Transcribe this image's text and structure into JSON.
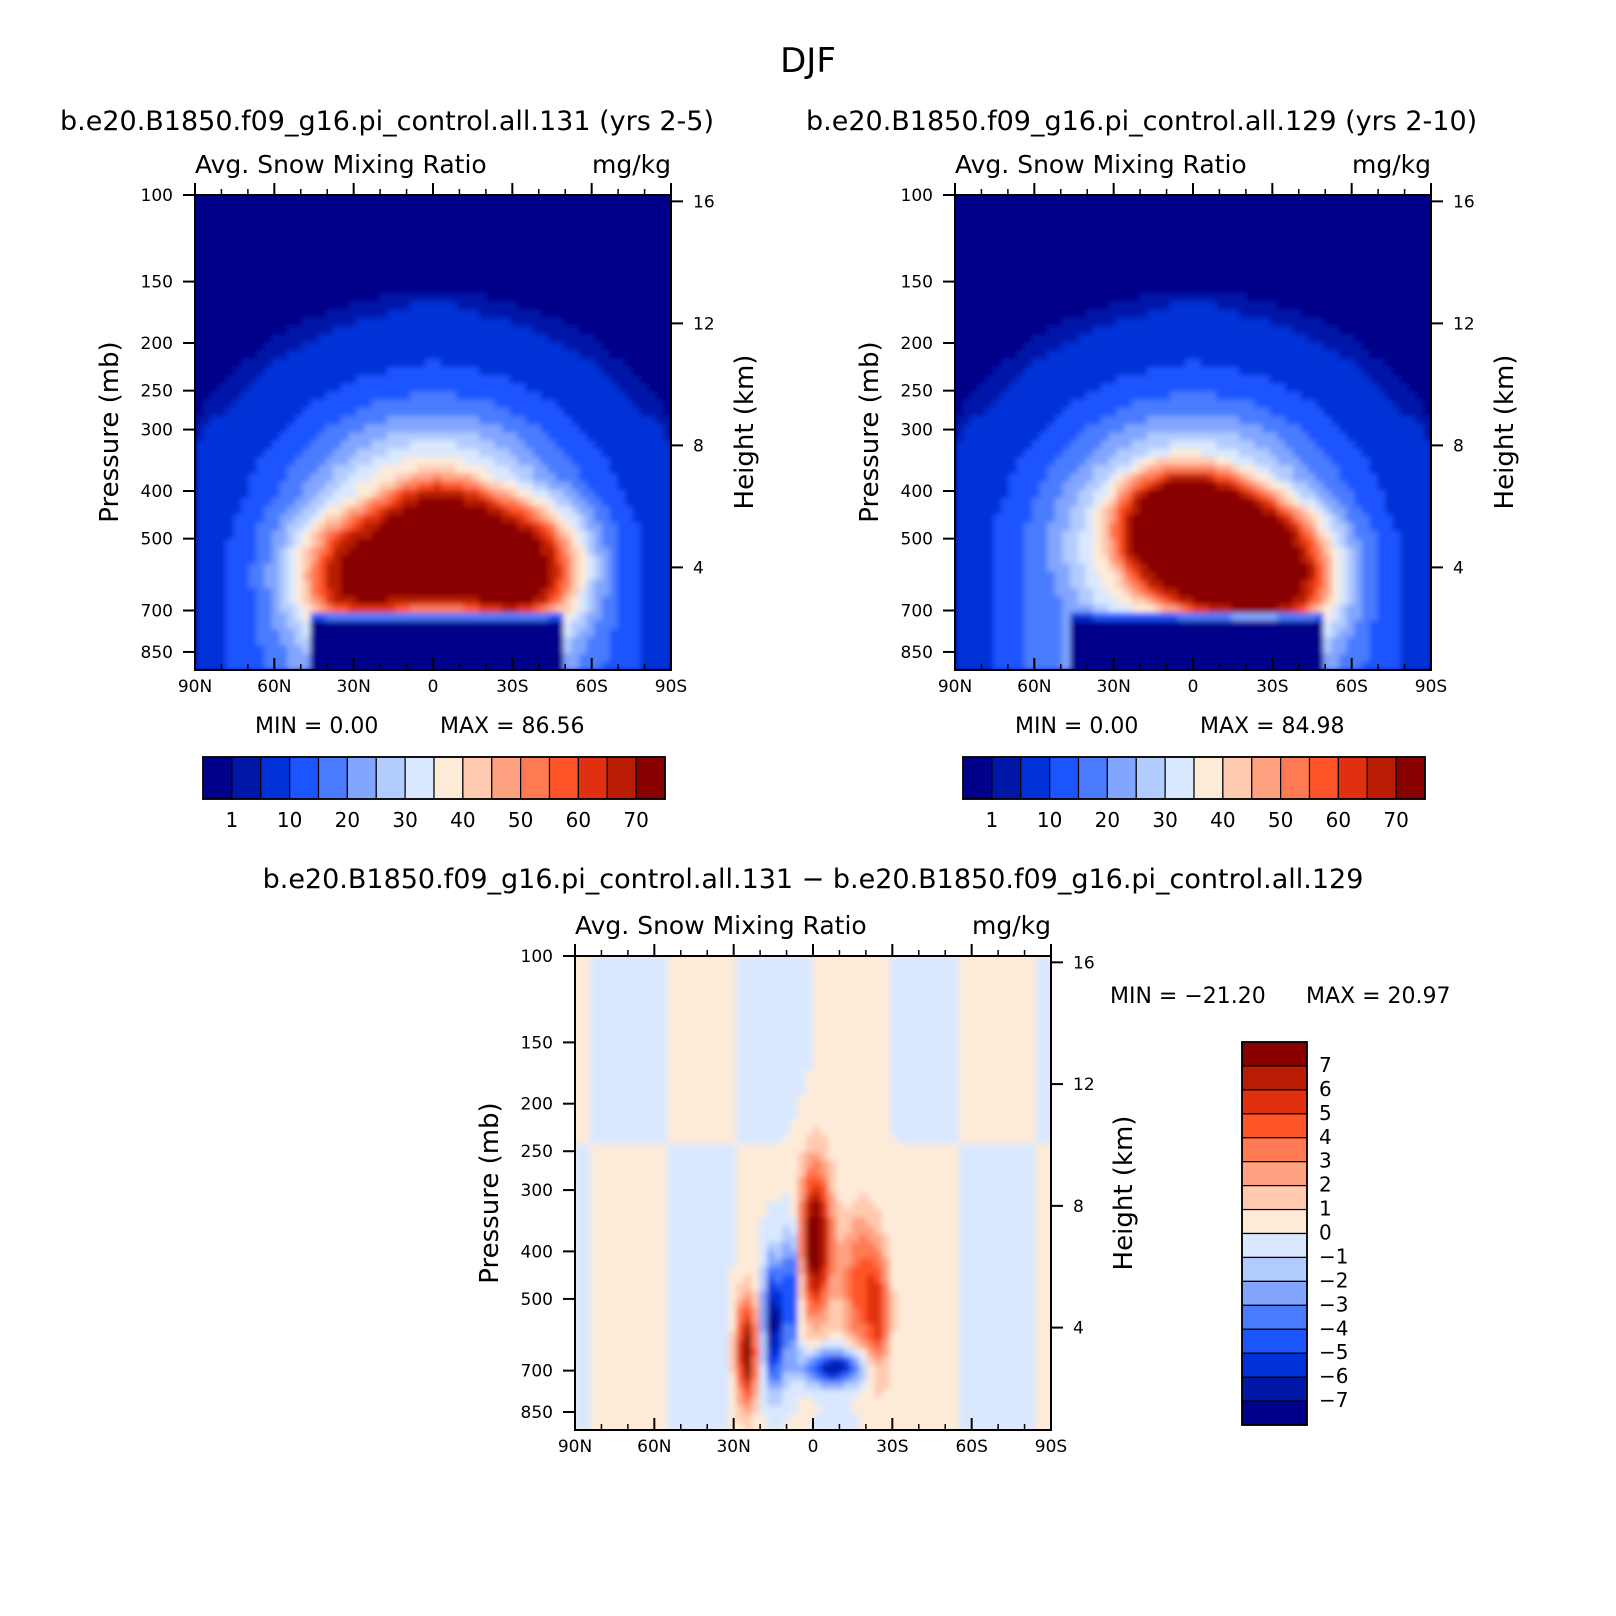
{
  "figure_title": "DJF",
  "colors": {
    "seq": [
      "#00008a",
      "#0018a8",
      "#0030d8",
      "#1a55ff",
      "#4a7bff",
      "#82a6ff",
      "#b3ccff",
      "#d9e8ff",
      "#fdebd8",
      "#ffcab0",
      "#ffa282",
      "#ff7a52",
      "#ff5428",
      "#e0300f",
      "#b81c05",
      "#880000"
    ],
    "div": [
      "#880000",
      "#b81c05",
      "#e0300f",
      "#ff5428",
      "#ff7a52",
      "#ffa282",
      "#ffcab0",
      "#fdebd8",
      "#d9e8ff",
      "#b3ccff",
      "#82a6ff",
      "#4a7bff",
      "#1a55ff",
      "#0030d8",
      "#0018a8",
      "#00008a"
    ]
  },
  "chart_data": [
    {
      "type": "heatmap",
      "title": "b.e20.B1850.f09_g16.pi_control.all.131 (yrs 2-5)",
      "subtitle_left": "Avg. Snow Mixing Ratio",
      "subtitle_right": "mg/kg",
      "ylabel": "Pressure (mb)",
      "ylabel_right": "Height (km)",
      "x_ticks": [
        "90N",
        "60N",
        "30N",
        "0",
        "30S",
        "60S",
        "90S"
      ],
      "y_ticks": [
        "100",
        "150",
        "200",
        "250",
        "300",
        "400",
        "500",
        "700",
        "850"
      ],
      "y_ticks_right": [
        "16",
        "12",
        "8",
        "4"
      ],
      "min_label": "MIN = 0.00",
      "max_label": "MAX = 86.56",
      "min": 0.0,
      "max": 86.56,
      "colorbar_labels": [
        "1",
        "10",
        "20",
        "30",
        "40",
        "50",
        "60",
        "70"
      ],
      "peaks": [
        {
          "lat": 28,
          "p": 600,
          "value": 62
        },
        {
          "lat": -2,
          "p": 500,
          "value": 86.56
        },
        {
          "lat": -32,
          "p": 580,
          "value": 75
        }
      ]
    },
    {
      "type": "heatmap",
      "title": "b.e20.B1850.f09_g16.pi_control.all.129 (yrs 2-10)",
      "subtitle_left": "Avg. Snow Mixing Ratio",
      "subtitle_right": "mg/kg",
      "ylabel": "Pressure (mb)",
      "ylabel_right": "Height (km)",
      "x_ticks": [
        "90N",
        "60N",
        "30N",
        "0",
        "30S",
        "60S",
        "90S"
      ],
      "y_ticks": [
        "100",
        "150",
        "200",
        "250",
        "300",
        "400",
        "500",
        "700",
        "850"
      ],
      "y_ticks_right": [
        "16",
        "12",
        "8",
        "4"
      ],
      "min_label": "MIN = 0.00",
      "max_label": "MAX = 84.98",
      "min": 0.0,
      "max": 84.98,
      "colorbar_labels": [
        "1",
        "10",
        "20",
        "30",
        "40",
        "50",
        "60",
        "70"
      ],
      "peaks": [
        {
          "lat": 8,
          "p": 480,
          "value": 80
        },
        {
          "lat": -10,
          "p": 520,
          "value": 84.98
        },
        {
          "lat": -30,
          "p": 600,
          "value": 70
        }
      ]
    },
    {
      "type": "heatmap",
      "title": "b.e20.B1850.f09_g16.pi_control.all.131 − b.e20.B1850.f09_g16.pi_control.all.129",
      "subtitle_left": "Avg. Snow Mixing Ratio",
      "subtitle_right": "mg/kg",
      "ylabel": "Pressure (mb)",
      "ylabel_right": "Height (km)",
      "x_ticks": [
        "90N",
        "60N",
        "30N",
        "0",
        "30S",
        "60S",
        "90S"
      ],
      "y_ticks": [
        "100",
        "150",
        "200",
        "250",
        "300",
        "400",
        "500",
        "700",
        "850"
      ],
      "y_ticks_right": [
        "16",
        "12",
        "8",
        "4"
      ],
      "min_label": "MIN = −21.20",
      "max_label": "MAX = 20.97",
      "min": -21.2,
      "max": 20.97,
      "colorbar_labels": [
        "7",
        "6",
        "5",
        "4",
        "3",
        "2",
        "1",
        "0",
        "−1",
        "−2",
        "−3",
        "−4",
        "−5",
        "−6",
        "−7"
      ]
    }
  ]
}
